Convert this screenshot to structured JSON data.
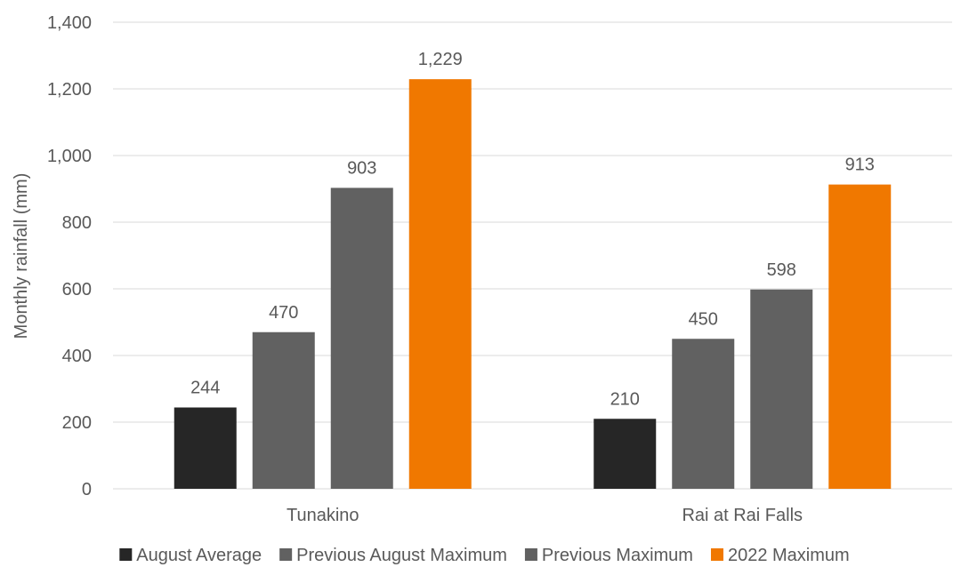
{
  "chart_data": {
    "type": "bar",
    "title": "",
    "xlabel": "",
    "ylabel": "Monthly rainfall (mm)",
    "ylim": [
      0,
      1400
    ],
    "yticks": [
      0,
      200,
      400,
      600,
      800,
      1000,
      1200,
      1400
    ],
    "ytick_labels": [
      "0",
      "200",
      "400",
      "600",
      "800",
      "1,000",
      "1,200",
      "1,400"
    ],
    "grid": true,
    "legend_position": "bottom",
    "categories": [
      "Tunakino",
      "Rai at Rai Falls"
    ],
    "series": [
      {
        "name": "August Average",
        "color": "#262626",
        "values": [
          244,
          210
        ],
        "labels": [
          "244",
          "210"
        ]
      },
      {
        "name": "Previous August Maximum",
        "color": "#616161",
        "values": [
          470,
          450
        ],
        "labels": [
          "470",
          "450"
        ]
      },
      {
        "name": "Previous Maximum",
        "color": "#616161",
        "values": [
          903,
          598
        ],
        "labels": [
          "903",
          "598"
        ]
      },
      {
        "name": "2022 Maximum",
        "color": "#F07800",
        "values": [
          1229,
          913
        ],
        "labels": [
          "1,229",
          "913"
        ]
      }
    ]
  }
}
